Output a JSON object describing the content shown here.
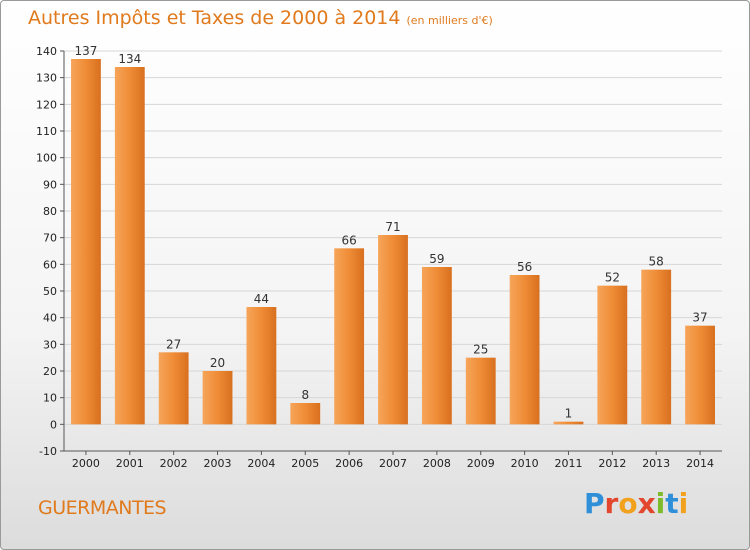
{
  "header": {
    "title": "Autres Impôts et Taxes de 2000 à 2014",
    "subtitle": "(en milliers d'€)"
  },
  "footer": {
    "commune": "GUERMANTES",
    "logo_text": "Proxiti",
    "logo_colors": [
      "#2f8fd8",
      "#e2472e",
      "#f2a11c",
      "#e2472e",
      "#7cbb2a",
      "#2f8fd8",
      "#f2a11c"
    ]
  },
  "chart_data": {
    "type": "bar",
    "title": "Autres Impôts et Taxes de 2000 à 2014",
    "subtitle": "(en milliers d'€)",
    "xlabel": "",
    "ylabel": "",
    "categories": [
      "2000",
      "2001",
      "2002",
      "2003",
      "2004",
      "2005",
      "2006",
      "2007",
      "2008",
      "2009",
      "2010",
      "2011",
      "2012",
      "2013",
      "2014"
    ],
    "values": [
      137,
      134,
      27,
      20,
      44,
      8,
      66,
      71,
      59,
      25,
      56,
      1,
      52,
      58,
      37
    ],
    "ylim": [
      -10,
      140
    ],
    "yticks": [
      -10,
      0,
      10,
      20,
      30,
      40,
      50,
      60,
      70,
      80,
      90,
      100,
      110,
      120,
      130,
      140
    ],
    "grid": true,
    "legend": "none",
    "bar_color": "#e8812a"
  }
}
